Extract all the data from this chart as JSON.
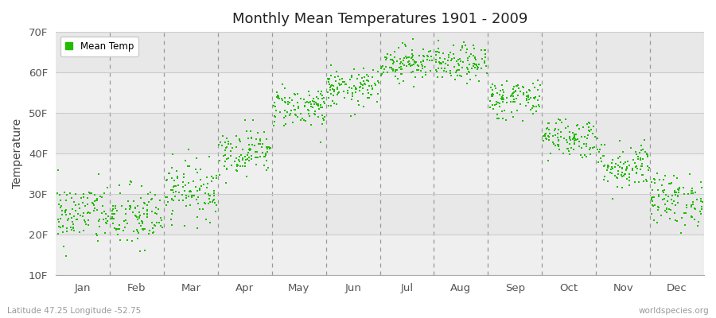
{
  "title": "Monthly Mean Temperatures 1901 - 2009",
  "ylabel": "Temperature",
  "bottom_left_label": "Latitude 47.25 Longitude -52.75",
  "bottom_right_label": "worldspecies.org",
  "legend_label": "Mean Temp",
  "marker_color": "#22bb00",
  "plot_bg_color": "#efefef",
  "ylim": [
    10,
    70
  ],
  "yticks": [
    10,
    20,
    30,
    40,
    50,
    60,
    70
  ],
  "ytick_labels": [
    "10F",
    "20F",
    "30F",
    "40F",
    "50F",
    "60F",
    "70F"
  ],
  "months": [
    "Jan",
    "Feb",
    "Mar",
    "Apr",
    "May",
    "Jun",
    "Jul",
    "Aug",
    "Sep",
    "Oct",
    "Nov",
    "Dec"
  ],
  "mean_temps_F": [
    25.0,
    24.0,
    31.0,
    40.5,
    51.5,
    56.0,
    62.5,
    62.0,
    53.5,
    44.0,
    37.0,
    28.5
  ],
  "std_devs": [
    3.8,
    4.0,
    3.5,
    2.8,
    2.5,
    2.3,
    2.2,
    2.2,
    2.5,
    2.5,
    3.0,
    3.2
  ],
  "n_years": 109,
  "seed": 42,
  "marker_size": 3.0,
  "dashed_line_color": "#999999",
  "grid_line_color": "#cccccc",
  "alt_band_color": "#e8e8e8"
}
